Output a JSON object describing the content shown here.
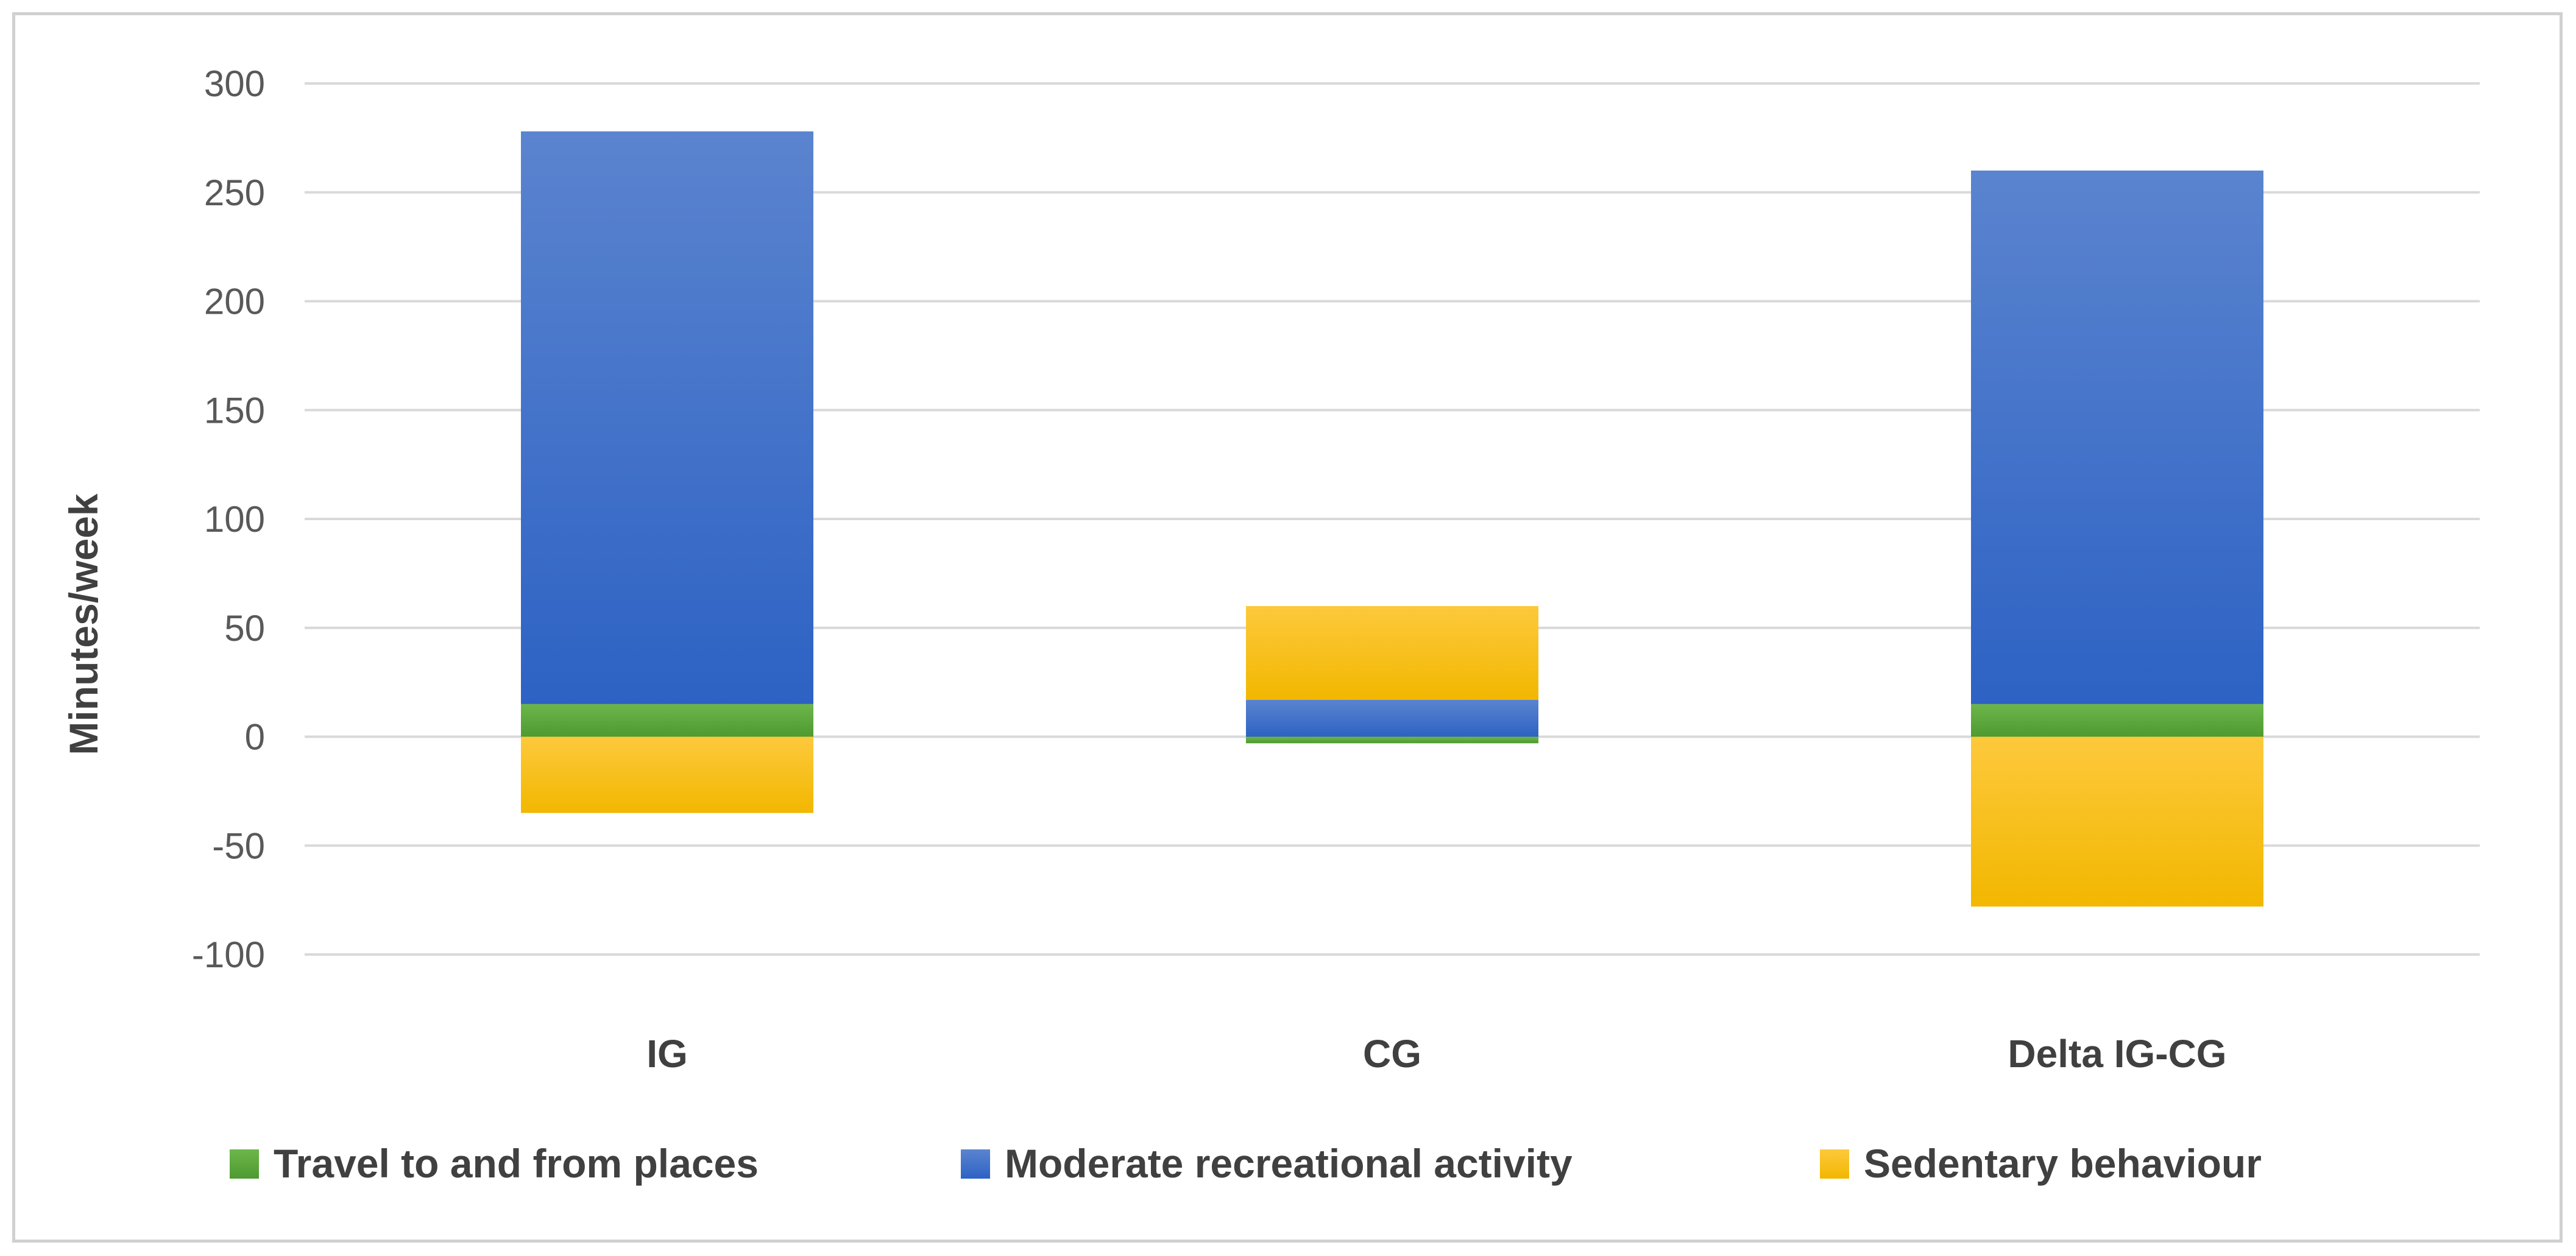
{
  "chart_data": {
    "type": "bar",
    "stacked": true,
    "title": "",
    "xlabel": "",
    "ylabel": "Minutes/week",
    "ylim": [
      -100,
      300
    ],
    "yticks": [
      300,
      250,
      200,
      150,
      100,
      50,
      0,
      -50,
      -100
    ],
    "grid": true,
    "legend_position": "bottom",
    "categories": [
      "IG",
      "CG",
      "Delta IG-CG"
    ],
    "series": [
      {
        "name": "Travel to and from places",
        "color": "#5aa83a",
        "values": [
          15,
          -3,
          15
        ]
      },
      {
        "name": "Moderate recreational activity",
        "color": "#3a6fcf",
        "values": [
          263,
          17,
          245
        ]
      },
      {
        "name": "Sedentary behaviour",
        "color": "#fbc318",
        "values": [
          -35,
          43,
          -78
        ]
      }
    ]
  }
}
